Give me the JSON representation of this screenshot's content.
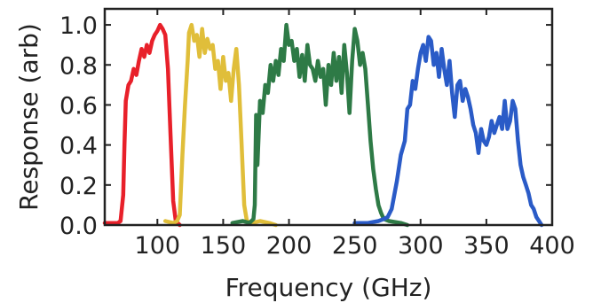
{
  "chart_data": {
    "type": "line",
    "xlabel": "Frequency (GHz)",
    "ylabel": "Response (arb)",
    "xlim": [
      60,
      400
    ],
    "ylim": [
      0,
      1.08
    ],
    "x_ticks": [
      100,
      150,
      200,
      250,
      300,
      350,
      400
    ],
    "y_ticks": [
      0.0,
      0.2,
      0.4,
      0.6,
      0.8,
      1.0
    ],
    "x_tick_labels": [
      "100",
      "150",
      "200",
      "250",
      "300",
      "350",
      "400"
    ],
    "y_tick_labels": [
      "0.0",
      "0.2",
      "0.4",
      "0.6",
      "0.8",
      "1.0"
    ],
    "grid": false,
    "series": [
      {
        "color": "#e8202a",
        "points": [
          [
            60,
            0.01
          ],
          [
            65,
            0.01
          ],
          [
            70,
            0.01
          ],
          [
            72,
            0.02
          ],
          [
            74,
            0.15
          ],
          [
            75,
            0.4
          ],
          [
            76,
            0.62
          ],
          [
            78,
            0.7
          ],
          [
            80,
            0.72
          ],
          [
            82,
            0.78
          ],
          [
            84,
            0.75
          ],
          [
            86,
            0.82
          ],
          [
            88,
            0.88
          ],
          [
            90,
            0.84
          ],
          [
            92,
            0.9
          ],
          [
            94,
            0.86
          ],
          [
            96,
            0.92
          ],
          [
            98,
            0.95
          ],
          [
            100,
            0.97
          ],
          [
            102,
            1.0
          ],
          [
            104,
            0.98
          ],
          [
            106,
            0.95
          ],
          [
            108,
            0.78
          ],
          [
            110,
            0.45
          ],
          [
            112,
            0.12
          ],
          [
            114,
            0.02
          ],
          [
            117,
            0.0
          ]
        ]
      },
      {
        "color": "#e0be3a",
        "points": [
          [
            106,
            0.02
          ],
          [
            112,
            0.01
          ],
          [
            115,
            0.02
          ],
          [
            117,
            0.05
          ],
          [
            119,
            0.35
          ],
          [
            121,
            0.6
          ],
          [
            123,
            0.82
          ],
          [
            124,
            0.96
          ],
          [
            126,
            1.0
          ],
          [
            128,
            0.92
          ],
          [
            130,
            0.95
          ],
          [
            132,
            0.84
          ],
          [
            134,
            0.98
          ],
          [
            136,
            0.86
          ],
          [
            138,
            0.93
          ],
          [
            140,
            0.88
          ],
          [
            142,
            0.9
          ],
          [
            144,
            0.78
          ],
          [
            146,
            0.82
          ],
          [
            148,
            0.68
          ],
          [
            150,
            0.84
          ],
          [
            152,
            0.72
          ],
          [
            154,
            0.76
          ],
          [
            156,
            0.62
          ],
          [
            158,
            0.78
          ],
          [
            160,
            0.88
          ],
          [
            162,
            0.7
          ],
          [
            164,
            0.4
          ],
          [
            166,
            0.1
          ],
          [
            168,
            0.02
          ],
          [
            172,
            0.01
          ],
          [
            178,
            0.02
          ],
          [
            185,
            0.01
          ],
          [
            190,
            0.0
          ]
        ]
      },
      {
        "color": "#2e7a46",
        "points": [
          [
            157,
            0.01
          ],
          [
            165,
            0.02
          ],
          [
            170,
            0.01
          ],
          [
            173,
            0.03
          ],
          [
            174,
            0.1
          ],
          [
            175,
            0.55
          ],
          [
            176,
            0.3
          ],
          [
            178,
            0.62
          ],
          [
            180,
            0.56
          ],
          [
            182,
            0.7
          ],
          [
            184,
            0.66
          ],
          [
            186,
            0.8
          ],
          [
            188,
            0.72
          ],
          [
            190,
            0.82
          ],
          [
            192,
            0.75
          ],
          [
            194,
            0.88
          ],
          [
            196,
            0.82
          ],
          [
            198,
            1.0
          ],
          [
            200,
            0.9
          ],
          [
            202,
            0.92
          ],
          [
            204,
            0.82
          ],
          [
            206,
            0.88
          ],
          [
            208,
            0.74
          ],
          [
            210,
            0.85
          ],
          [
            212,
            0.72
          ],
          [
            214,
            0.9
          ],
          [
            216,
            0.8
          ],
          [
            218,
            0.78
          ],
          [
            220,
            0.72
          ],
          [
            222,
            0.82
          ],
          [
            224,
            0.74
          ],
          [
            226,
            0.78
          ],
          [
            228,
            0.6
          ],
          [
            230,
            0.8
          ],
          [
            232,
            0.7
          ],
          [
            234,
            0.86
          ],
          [
            236,
            0.72
          ],
          [
            238,
            0.84
          ],
          [
            240,
            0.66
          ],
          [
            242,
            0.9
          ],
          [
            244,
            0.76
          ],
          [
            246,
            0.56
          ],
          [
            248,
            0.82
          ],
          [
            250,
            0.98
          ],
          [
            252,
            0.92
          ],
          [
            254,
            0.8
          ],
          [
            256,
            0.86
          ],
          [
            258,
            0.78
          ],
          [
            260,
            0.6
          ],
          [
            262,
            0.42
          ],
          [
            264,
            0.28
          ],
          [
            266,
            0.18
          ],
          [
            268,
            0.1
          ],
          [
            270,
            0.06
          ],
          [
            272,
            0.03
          ],
          [
            276,
            0.02
          ],
          [
            285,
            0.01
          ],
          [
            290,
            0.0
          ]
        ]
      },
      {
        "color": "#2a5bc7",
        "points": [
          [
            250,
            0.01
          ],
          [
            260,
            0.01
          ],
          [
            268,
            0.02
          ],
          [
            272,
            0.03
          ],
          [
            275,
            0.04
          ],
          [
            278,
            0.08
          ],
          [
            282,
            0.22
          ],
          [
            285,
            0.35
          ],
          [
            288,
            0.42
          ],
          [
            290,
            0.58
          ],
          [
            292,
            0.6
          ],
          [
            294,
            0.72
          ],
          [
            296,
            0.68
          ],
          [
            298,
            0.78
          ],
          [
            300,
            0.86
          ],
          [
            302,
            0.9
          ],
          [
            304,
            0.82
          ],
          [
            306,
            0.94
          ],
          [
            308,
            0.92
          ],
          [
            310,
            0.8
          ],
          [
            312,
            0.86
          ],
          [
            314,
            0.74
          ],
          [
            316,
            0.88
          ],
          [
            318,
            0.78
          ],
          [
            320,
            0.7
          ],
          [
            322,
            0.82
          ],
          [
            324,
            0.66
          ],
          [
            326,
            0.54
          ],
          [
            328,
            0.7
          ],
          [
            330,
            0.72
          ],
          [
            332,
            0.62
          ],
          [
            334,
            0.68
          ],
          [
            336,
            0.64
          ],
          [
            338,
            0.58
          ],
          [
            340,
            0.5
          ],
          [
            342,
            0.46
          ],
          [
            344,
            0.36
          ],
          [
            346,
            0.48
          ],
          [
            348,
            0.42
          ],
          [
            350,
            0.4
          ],
          [
            352,
            0.44
          ],
          [
            354,
            0.52
          ],
          [
            356,
            0.46
          ],
          [
            358,
            0.5
          ],
          [
            360,
            0.54
          ],
          [
            362,
            0.48
          ],
          [
            364,
            0.62
          ],
          [
            366,
            0.48
          ],
          [
            368,
            0.52
          ],
          [
            370,
            0.62
          ],
          [
            372,
            0.58
          ],
          [
            374,
            0.42
          ],
          [
            376,
            0.3
          ],
          [
            378,
            0.24
          ],
          [
            380,
            0.2
          ],
          [
            382,
            0.16
          ],
          [
            384,
            0.1
          ],
          [
            386,
            0.08
          ],
          [
            388,
            0.04
          ],
          [
            390,
            0.02
          ],
          [
            392,
            0.0
          ]
        ]
      }
    ]
  }
}
